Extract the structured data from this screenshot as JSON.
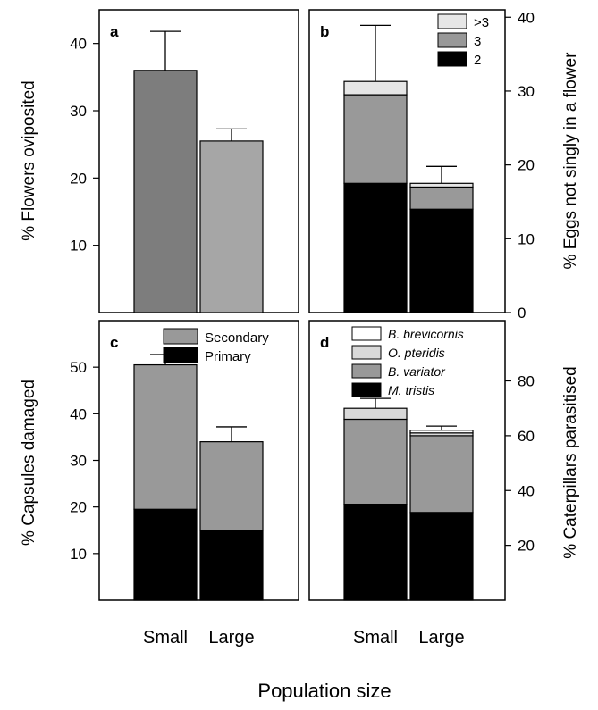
{
  "figure": {
    "xlabel": "Population size"
  },
  "chart_data": [
    {
      "panel": "a",
      "type": "bar",
      "categories": [
        "Small",
        "Large"
      ],
      "series": [
        {
          "values": [
            36,
            25.5
          ],
          "errors": [
            5.8,
            1.8
          ],
          "colors": [
            "#7d7d7d",
            "#a6a6a6"
          ]
        }
      ],
      "ylabel": "% Flowers oviposited",
      "ylim": [
        0,
        45
      ],
      "yticks": [
        10,
        20,
        30,
        40
      ],
      "yaxis_side": "left",
      "stacked": false,
      "show_category_labels": false
    },
    {
      "panel": "b",
      "type": "bar",
      "stacked": true,
      "categories": [
        "Small",
        "Large"
      ],
      "series": [
        {
          "name": "2",
          "values": [
            17.5,
            14
          ],
          "color": "#000000"
        },
        {
          "name": "3",
          "values": [
            12,
            3
          ],
          "color": "#999999"
        },
        {
          "name": ">3",
          "values": [
            1.8,
            0.5
          ],
          "color": "#e6e6e6"
        }
      ],
      "totals_errors": [
        7.6,
        2.3
      ],
      "legend": ">3 / 3 / 2",
      "legend_position": "top-right",
      "ylabel": "% Eggs not singly in a flower",
      "ylim": [
        0,
        41
      ],
      "yticks": [
        0,
        10,
        20,
        30,
        40
      ],
      "yaxis_side": "right",
      "show_category_labels": false
    },
    {
      "panel": "c",
      "type": "bar",
      "stacked": true,
      "categories": [
        "Small",
        "Large"
      ],
      "series": [
        {
          "name": "Primary",
          "values": [
            19.5,
            15
          ],
          "color": "#000000"
        },
        {
          "name": "Secondary",
          "values": [
            31,
            19
          ],
          "color": "#999999"
        }
      ],
      "totals_errors": [
        2.2,
        3.2
      ],
      "legend_position": "top-right",
      "ylabel": "% Capsules damaged",
      "ylim": [
        0,
        60
      ],
      "yticks": [
        10,
        20,
        30,
        40,
        50
      ],
      "yaxis_side": "left",
      "show_category_labels": true
    },
    {
      "panel": "d",
      "type": "bar",
      "stacked": true,
      "categories": [
        "Small",
        "Large"
      ],
      "series": [
        {
          "name": "M. tristis",
          "values": [
            35,
            32
          ],
          "color": "#000000"
        },
        {
          "name": "B. variator",
          "values": [
            31,
            28
          ],
          "color": "#999999"
        },
        {
          "name": "O. pteridis",
          "values": [
            4,
            1
          ],
          "color": "#d9d9d9"
        },
        {
          "name": "B. brevicornis",
          "values": [
            0,
            1
          ],
          "color": "#ffffff"
        }
      ],
      "totals_errors": [
        3.6,
        1.5
      ],
      "legend_position": "top-left",
      "legend_italic": true,
      "ylabel": "% Caterpillars parasitised",
      "ylim": [
        0,
        102
      ],
      "yticks": [
        20,
        40,
        60,
        80
      ],
      "yaxis_side": "right",
      "show_category_labels": true
    }
  ]
}
